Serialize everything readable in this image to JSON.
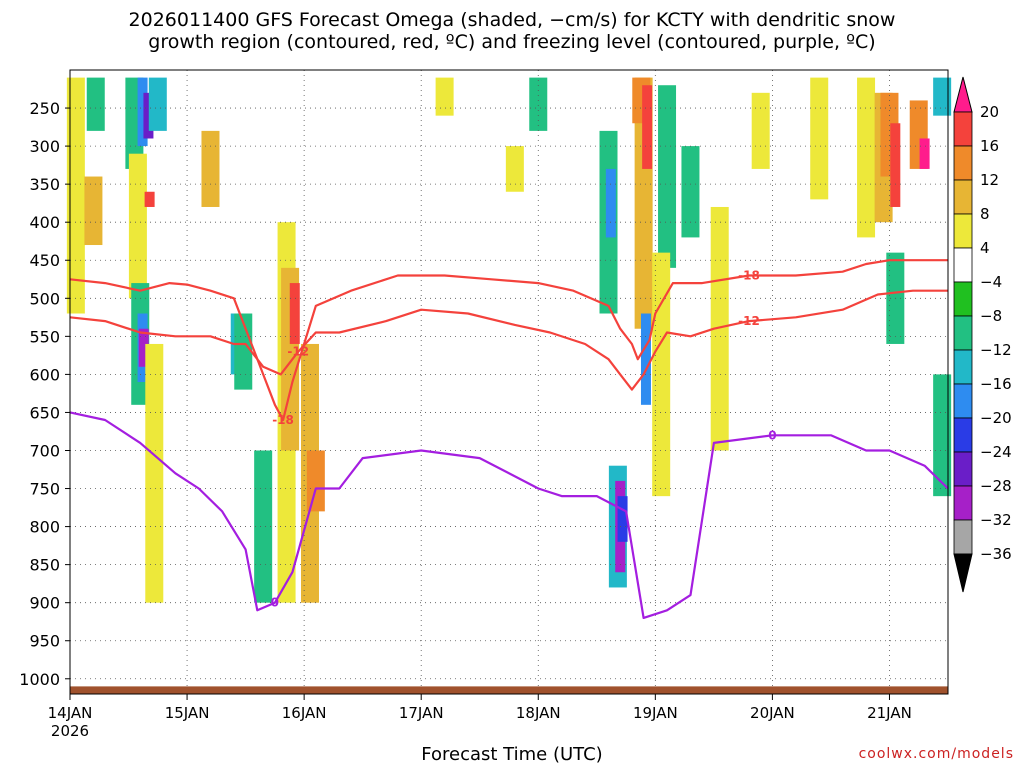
{
  "chart_data": {
    "type": "heatmap",
    "title": "2026011400 GFS Forecast Omega (shaded, −cm/s) for KCTY with dendritic snow",
    "subtitle": "growth region (contoured, red, ºC) and freezing level (contoured, purple, ºC)",
    "xlabel": "Forecast Time (UTC)",
    "ylabel": "",
    "credit": "coolwx.com/models",
    "x_ticks": [
      "14JAN",
      "15JAN",
      "16JAN",
      "17JAN",
      "18JAN",
      "19JAN",
      "20JAN",
      "21JAN"
    ],
    "x_year": "2026",
    "xlim_days": [
      0,
      7.5
    ],
    "y_ticks": [
      250,
      300,
      350,
      400,
      450,
      500,
      550,
      600,
      650,
      700,
      750,
      800,
      850,
      900,
      950,
      1000
    ],
    "ylim_hpa": [
      200,
      1020
    ],
    "colorbar": {
      "levels": [
        "20",
        "16",
        "12",
        "8",
        "4",
        "-4",
        "-8",
        "-12",
        "-16",
        "-20",
        "-24",
        "-28",
        "-32",
        "-36"
      ],
      "colors": [
        "#ff1c8c",
        "#f4423c",
        "#ef8a2a",
        "#e7b534",
        "#ede83a",
        "#ffffff",
        "#20c020",
        "#22c082",
        "#22b8c8",
        "#2e8cf0",
        "#2a3ce6",
        "#6a1ec8",
        "#a620c8",
        "#a6a6a6",
        "#000000"
      ]
    },
    "omega_regions": [
      {
        "x": 0.05,
        "p1": 210,
        "p2": 520,
        "v": 4
      },
      {
        "x": 0.22,
        "p1": 210,
        "p2": 280,
        "v": -8
      },
      {
        "x": 0.2,
        "p1": 340,
        "p2": 430,
        "v": 8
      },
      {
        "x": 0.55,
        "p1": 210,
        "p2": 330,
        "v": -8
      },
      {
        "x": 0.62,
        "p1": 210,
        "p2": 300,
        "v": -16
      },
      {
        "x": 0.67,
        "p1": 230,
        "p2": 290,
        "v": -24
      },
      {
        "x": 0.75,
        "p1": 210,
        "p2": 280,
        "v": -12
      },
      {
        "x": 0.58,
        "p1": 310,
        "p2": 500,
        "v": 4
      },
      {
        "x": 0.6,
        "p1": 480,
        "p2": 640,
        "v": -8
      },
      {
        "x": 0.62,
        "p1": 520,
        "p2": 610,
        "v": -16
      },
      {
        "x": 0.63,
        "p1": 540,
        "p2": 590,
        "v": -28
      },
      {
        "x": 0.68,
        "p1": 360,
        "p2": 380,
        "v": 16
      },
      {
        "x": 0.72,
        "p1": 560,
        "p2": 900,
        "v": 4
      },
      {
        "x": 1.2,
        "p1": 280,
        "p2": 380,
        "v": 8
      },
      {
        "x": 1.45,
        "p1": 520,
        "p2": 600,
        "v": -12
      },
      {
        "x": 1.48,
        "p1": 520,
        "p2": 620,
        "v": -8
      },
      {
        "x": 1.85,
        "p1": 400,
        "p2": 900,
        "v": 4
      },
      {
        "x": 1.88,
        "p1": 460,
        "p2": 700,
        "v": 8
      },
      {
        "x": 1.92,
        "p1": 480,
        "p2": 560,
        "v": 16
      },
      {
        "x": 2.05,
        "p1": 560,
        "p2": 900,
        "v": 8
      },
      {
        "x": 2.1,
        "p1": 700,
        "p2": 780,
        "v": 12
      },
      {
        "x": 1.65,
        "p1": 700,
        "p2": 900,
        "v": -8
      },
      {
        "x": 3.2,
        "p1": 210,
        "p2": 260,
        "v": 4
      },
      {
        "x": 3.8,
        "p1": 300,
        "p2": 360,
        "v": 4
      },
      {
        "x": 4.0,
        "p1": 210,
        "p2": 280,
        "v": -8
      },
      {
        "x": 4.6,
        "p1": 280,
        "p2": 520,
        "v": -8
      },
      {
        "x": 4.62,
        "p1": 330,
        "p2": 420,
        "v": -16
      },
      {
        "x": 4.68,
        "p1": 720,
        "p2": 880,
        "v": -12
      },
      {
        "x": 4.7,
        "p1": 740,
        "p2": 860,
        "v": -28
      },
      {
        "x": 4.72,
        "p1": 760,
        "p2": 820,
        "v": -20
      },
      {
        "x": 4.9,
        "p1": 210,
        "p2": 540,
        "v": 8
      },
      {
        "x": 4.88,
        "p1": 210,
        "p2": 270,
        "v": 12
      },
      {
        "x": 4.93,
        "p1": 220,
        "p2": 330,
        "v": 16
      },
      {
        "x": 4.92,
        "p1": 520,
        "p2": 640,
        "v": -16
      },
      {
        "x": 5.1,
        "p1": 220,
        "p2": 460,
        "v": -8
      },
      {
        "x": 5.3,
        "p1": 300,
        "p2": 420,
        "v": -8
      },
      {
        "x": 5.05,
        "p1": 440,
        "p2": 760,
        "v": 4
      },
      {
        "x": 5.55,
        "p1": 380,
        "p2": 700,
        "v": 4
      },
      {
        "x": 5.9,
        "p1": 230,
        "p2": 330,
        "v": 4
      },
      {
        "x": 6.4,
        "p1": 210,
        "p2": 370,
        "v": 4
      },
      {
        "x": 6.8,
        "p1": 210,
        "p2": 420,
        "v": 4
      },
      {
        "x": 6.95,
        "p1": 230,
        "p2": 400,
        "v": 8
      },
      {
        "x": 7.0,
        "p1": 230,
        "p2": 340,
        "v": 12
      },
      {
        "x": 7.05,
        "p1": 270,
        "p2": 380,
        "v": 16
      },
      {
        "x": 7.25,
        "p1": 240,
        "p2": 330,
        "v": 12
      },
      {
        "x": 7.3,
        "p1": 290,
        "p2": 330,
        "v": 20
      },
      {
        "x": 7.45,
        "p1": 210,
        "p2": 260,
        "v": -12
      },
      {
        "x": 7.05,
        "p1": 440,
        "p2": 560,
        "v": -8
      },
      {
        "x": 7.45,
        "p1": 600,
        "p2": 760,
        "v": -8
      }
    ],
    "contours": [
      {
        "label": "-18",
        "color": "#f4423c",
        "x": [
          0,
          0.3,
          0.6,
          0.85,
          1.0,
          1.2,
          1.4,
          1.55,
          1.65,
          1.75,
          1.82,
          1.9,
          2.1,
          2.4,
          2.8,
          3.2,
          3.6,
          4.0,
          4.3,
          4.6,
          4.7,
          4.8,
          4.85,
          4.95,
          5.0,
          5.15,
          5.4,
          5.8,
          6.2,
          6.6,
          6.8,
          7.0,
          7.2,
          7.5
        ],
        "p": [
          475,
          480,
          490,
          480,
          482,
          490,
          500,
          560,
          600,
          640,
          660,
          610,
          510,
          490,
          470,
          470,
          475,
          480,
          490,
          510,
          540,
          560,
          580,
          555,
          520,
          480,
          480,
          470,
          470,
          465,
          455,
          450,
          450,
          450
        ]
      },
      {
        "label": "-12",
        "color": "#f4423c",
        "x": [
          0,
          0.3,
          0.6,
          0.9,
          1.2,
          1.4,
          1.5,
          1.65,
          1.8,
          1.95,
          2.1,
          2.3,
          2.7,
          3.0,
          3.4,
          3.8,
          4.1,
          4.4,
          4.6,
          4.7,
          4.8,
          4.9,
          5.0,
          5.1,
          5.3,
          5.5,
          5.8,
          6.2,
          6.6,
          6.9,
          7.2,
          7.5
        ],
        "p": [
          525,
          530,
          545,
          550,
          550,
          560,
          560,
          590,
          600,
          570,
          545,
          545,
          530,
          515,
          520,
          535,
          545,
          560,
          580,
          600,
          620,
          600,
          570,
          545,
          550,
          540,
          530,
          525,
          515,
          495,
          490,
          490
        ]
      },
      {
        "label": "0",
        "color": "#a41ee0",
        "x": [
          0,
          0.3,
          0.6,
          0.9,
          1.1,
          1.3,
          1.5,
          1.6,
          1.75,
          1.9,
          2.1,
          2.3,
          2.5,
          3.0,
          3.5,
          4.0,
          4.2,
          4.5,
          4.75,
          4.9,
          5.1,
          5.3,
          5.5,
          6.0,
          6.5,
          6.8,
          7.0,
          7.3,
          7.5
        ],
        "p": [
          650,
          660,
          690,
          730,
          750,
          780,
          830,
          910,
          900,
          860,
          750,
          750,
          710,
          700,
          710,
          750,
          760,
          760,
          780,
          920,
          910,
          890,
          690,
          680,
          680,
          700,
          700,
          720,
          750
        ]
      }
    ]
  }
}
